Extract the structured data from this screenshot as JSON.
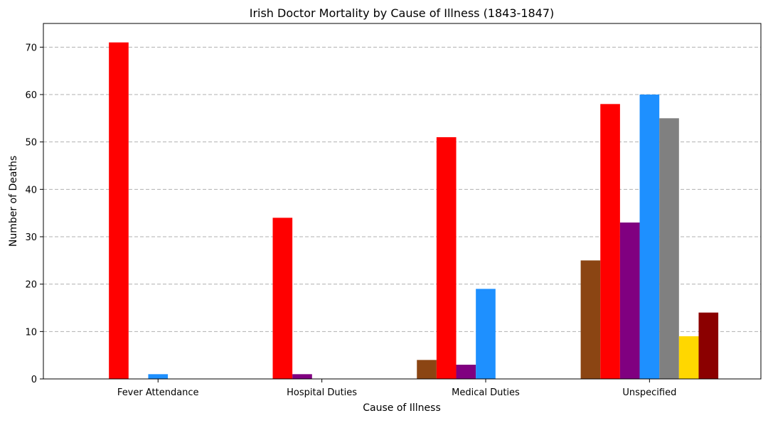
{
  "chart_data": {
    "type": "bar",
    "title": "Irish Doctor Mortality by Cause of Illness (1843-1847)",
    "xlabel": "Cause of Illness",
    "ylabel": "Number of Deaths",
    "categories": [
      "Fever Attendance",
      "Hospital Duties",
      "Medical Duties",
      "Unspecified"
    ],
    "ylim": [
      0,
      75
    ],
    "yticks": [
      0,
      10,
      20,
      30,
      40,
      50,
      60,
      70
    ],
    "grid": "y-dashed",
    "legend": "none",
    "series": [
      {
        "color": "#8B4513",
        "values": [
          0,
          0,
          4,
          25
        ]
      },
      {
        "color": "#FF0000",
        "values": [
          71,
          34,
          51,
          58
        ]
      },
      {
        "color": "#800080",
        "values": [
          0,
          1,
          3,
          33
        ]
      },
      {
        "color": "#1E90FF",
        "values": [
          1,
          0,
          19,
          60
        ]
      },
      {
        "color": "#808080",
        "values": [
          0,
          0,
          0,
          55
        ]
      },
      {
        "color": "#FFD700",
        "values": [
          0,
          0,
          0,
          9
        ]
      },
      {
        "color": "#8B0000",
        "values": [
          0,
          0,
          0,
          14
        ]
      }
    ]
  }
}
